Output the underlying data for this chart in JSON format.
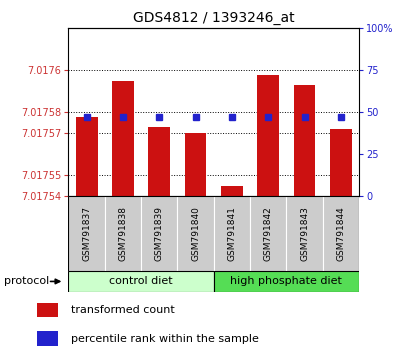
{
  "title": "GDS4812 / 1393246_at",
  "samples": [
    "GSM791837",
    "GSM791838",
    "GSM791839",
    "GSM791840",
    "GSM791841",
    "GSM791842",
    "GSM791843",
    "GSM791844"
  ],
  "transformed_counts": [
    7.017578,
    7.017595,
    7.017573,
    7.01757,
    7.017545,
    7.017598,
    7.017593,
    7.017572
  ],
  "percentile_ranks": [
    47,
    47,
    47,
    47,
    47,
    47,
    47,
    47
  ],
  "ylim_left": [
    7.01754,
    7.01762
  ],
  "ylim_right": [
    0,
    100
  ],
  "yticks_left": [
    7.01754,
    7.01755,
    7.01757,
    7.01758,
    7.0176
  ],
  "ytick_labels_left": [
    "7.01754",
    "7.01755",
    "7.01757",
    "7.01758",
    "7.0176"
  ],
  "yticks_right": [
    0,
    25,
    50,
    75,
    100
  ],
  "groups": [
    {
      "label": "control diet",
      "indices": [
        0,
        1,
        2,
        3
      ],
      "color": "#ccffcc"
    },
    {
      "label": "high phosphate diet",
      "indices": [
        4,
        5,
        6,
        7
      ],
      "color": "#55dd55"
    }
  ],
  "group_label": "protocol",
  "bar_color": "#cc1111",
  "dot_color": "#2222cc",
  "bar_width": 0.6,
  "baseline": 7.01754,
  "title_fontsize": 10,
  "tick_fontsize": 7,
  "label_fontsize": 8,
  "sample_fontsize": 6.5,
  "background_color": "#ffffff",
  "plot_bg_color": "#ffffff",
  "grid_color": "#000000",
  "left_tick_color": "#cc3333",
  "right_tick_color": "#2222cc",
  "gray_box_color": "#cccccc"
}
